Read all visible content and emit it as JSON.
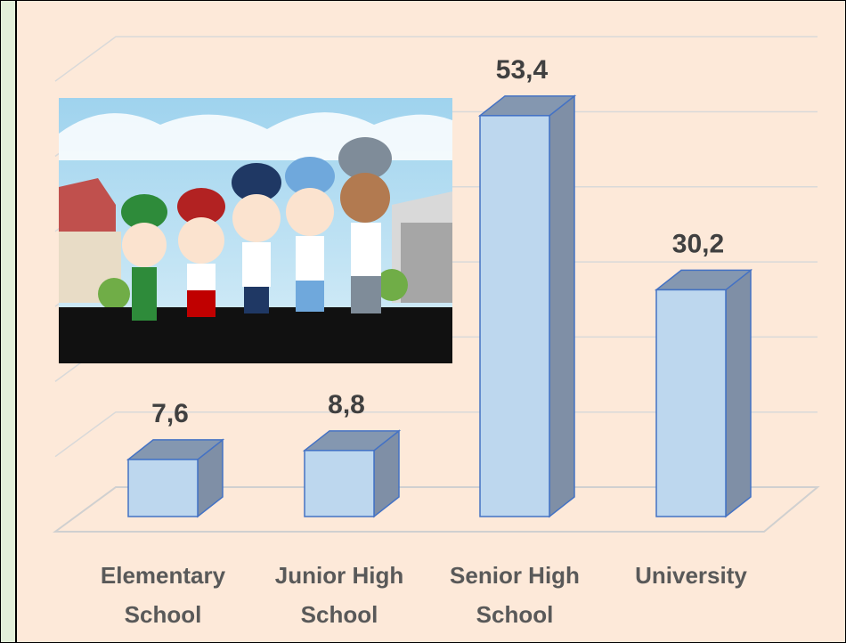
{
  "chart_data": {
    "type": "bar3d",
    "categories": [
      "Elementary School",
      "Junior High School",
      "Senior High School",
      "University"
    ],
    "values": [
      7.6,
      8.8,
      53.4,
      30.2
    ],
    "value_labels": [
      "7,6",
      "8,8",
      "53,4",
      "30,2"
    ],
    "color": "#bdd7ee",
    "ylim": [
      0,
      60
    ],
    "yticks": [
      0,
      10,
      20,
      30,
      40,
      50,
      60
    ],
    "grid": true
  }
}
